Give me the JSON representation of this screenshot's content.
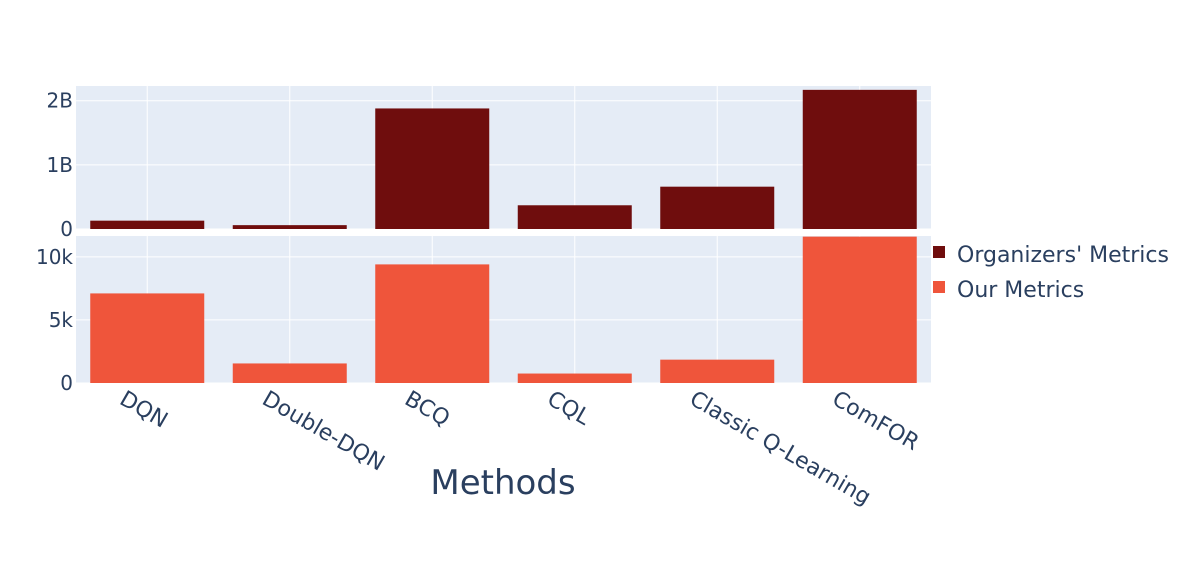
{
  "chart_data": {
    "type": "bar",
    "xlabel": "Methods",
    "categories": [
      "DQN",
      "Double-DQN",
      "BCQ",
      "CQL",
      "Classic Q-Learning",
      "ComFOR"
    ],
    "legend_position": "right",
    "grid": true,
    "colors": {
      "plot_bg": "#e5ecf6",
      "grid": "#ffffff",
      "text": "#2a3f5f"
    },
    "panels": [
      {
        "series": {
          "name": "Organizers' Metrics",
          "color": "#6f0d0d",
          "values": [
            130000000,
            60000000,
            1880000000,
            370000000,
            660000000,
            2170000000
          ]
        },
        "ylim": [
          0,
          2230000000
        ],
        "yticks": [
          0,
          1000000000,
          2000000000
        ],
        "yticklabels": [
          "0",
          "1B",
          "2B"
        ]
      },
      {
        "series": {
          "name": "Our Metrics",
          "color": "#ef553b",
          "values": [
            7100,
            1550,
            9400,
            750,
            1850,
            11600
          ]
        },
        "ylim": [
          0,
          11650
        ],
        "yticks": [
          0,
          5000,
          10000
        ],
        "yticklabels": [
          "0",
          "5k",
          "10k"
        ]
      }
    ]
  }
}
